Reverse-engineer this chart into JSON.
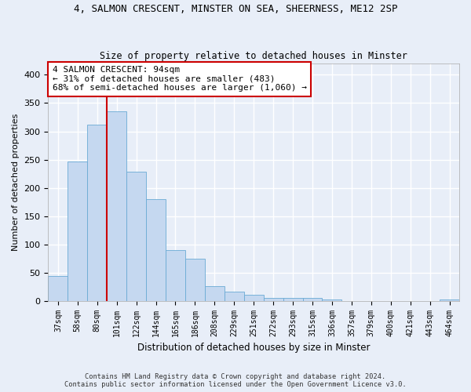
{
  "title1": "4, SALMON CRESCENT, MINSTER ON SEA, SHEERNESS, ME12 2SP",
  "title2": "Size of property relative to detached houses in Minster",
  "xlabel": "Distribution of detached houses by size in Minster",
  "ylabel": "Number of detached properties",
  "categories": [
    "37sqm",
    "58sqm",
    "80sqm",
    "101sqm",
    "122sqm",
    "144sqm",
    "165sqm",
    "186sqm",
    "208sqm",
    "229sqm",
    "251sqm",
    "272sqm",
    "293sqm",
    "315sqm",
    "336sqm",
    "357sqm",
    "379sqm",
    "400sqm",
    "421sqm",
    "443sqm",
    "464sqm"
  ],
  "values": [
    44,
    246,
    312,
    335,
    228,
    180,
    90,
    75,
    26,
    16,
    10,
    5,
    5,
    5,
    3,
    0,
    0,
    0,
    0,
    0,
    3
  ],
  "bar_color": "#c5d8f0",
  "bar_edge_color": "#6aaad4",
  "vline_x_index": 2,
  "vline_color": "#cc0000",
  "annotation_box_text": "4 SALMON CRESCENT: 94sqm\n← 31% of detached houses are smaller (483)\n68% of semi-detached houses are larger (1,060) →",
  "annotation_box_color": "#cc0000",
  "background_color": "#e8eef8",
  "grid_color": "#ffffff",
  "footer1": "Contains HM Land Registry data © Crown copyright and database right 2024.",
  "footer2": "Contains public sector information licensed under the Open Government Licence v3.0.",
  "ylim": [
    0,
    420
  ],
  "yticks": [
    0,
    50,
    100,
    150,
    200,
    250,
    300,
    350,
    400
  ]
}
